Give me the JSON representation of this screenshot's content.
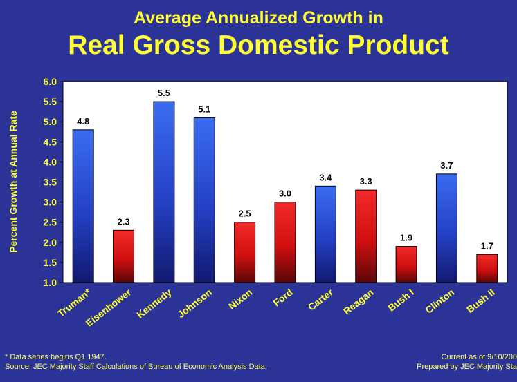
{
  "title_line1": "Average Annualized Growth in",
  "title_line2": "Real Gross Domestic Product",
  "footnote": "* Data series begins Q1 1947.",
  "source": "Source: JEC Majority Staff Calculations of Bureau of Economic Analysis Data.",
  "current_as_of": "Current as of 9/10/200",
  "prepared_by": "Prepared by JEC Majority Sta",
  "colors": {
    "background": "#2c3396",
    "title": "#ffff33",
    "plot_area": "#ffffff",
    "democrat_bar": "#2a4fd6",
    "republican_bar": "#e01414"
  },
  "chart_data": {
    "type": "bar",
    "ylabel": "Percent Growth at Annual Rate",
    "ylim": [
      1.0,
      6.0
    ],
    "yticks": [
      "1.0",
      "1.5",
      "2.0",
      "2.5",
      "3.0",
      "3.5",
      "4.0",
      "4.5",
      "5.0",
      "5.5",
      "6.0"
    ],
    "grid": false,
    "categories": [
      "Truman*",
      "Eisenhower",
      "Kennedy",
      "Johnson",
      "Nixon",
      "Ford",
      "Carter",
      "Reagan",
      "Bush I",
      "Clinton",
      "Bush II"
    ],
    "values": [
      4.8,
      2.3,
      5.5,
      5.1,
      2.5,
      3.0,
      3.4,
      3.3,
      1.9,
      3.7,
      1.7
    ],
    "value_labels": [
      "4.8",
      "2.3",
      "5.5",
      "5.1",
      "2.5",
      "3.0",
      "3.4",
      "3.3",
      "1.9",
      "3.7",
      "1.7"
    ],
    "bar_colors": [
      "blue",
      "red",
      "blue",
      "blue",
      "red",
      "red",
      "blue",
      "red",
      "red",
      "blue",
      "red"
    ]
  }
}
